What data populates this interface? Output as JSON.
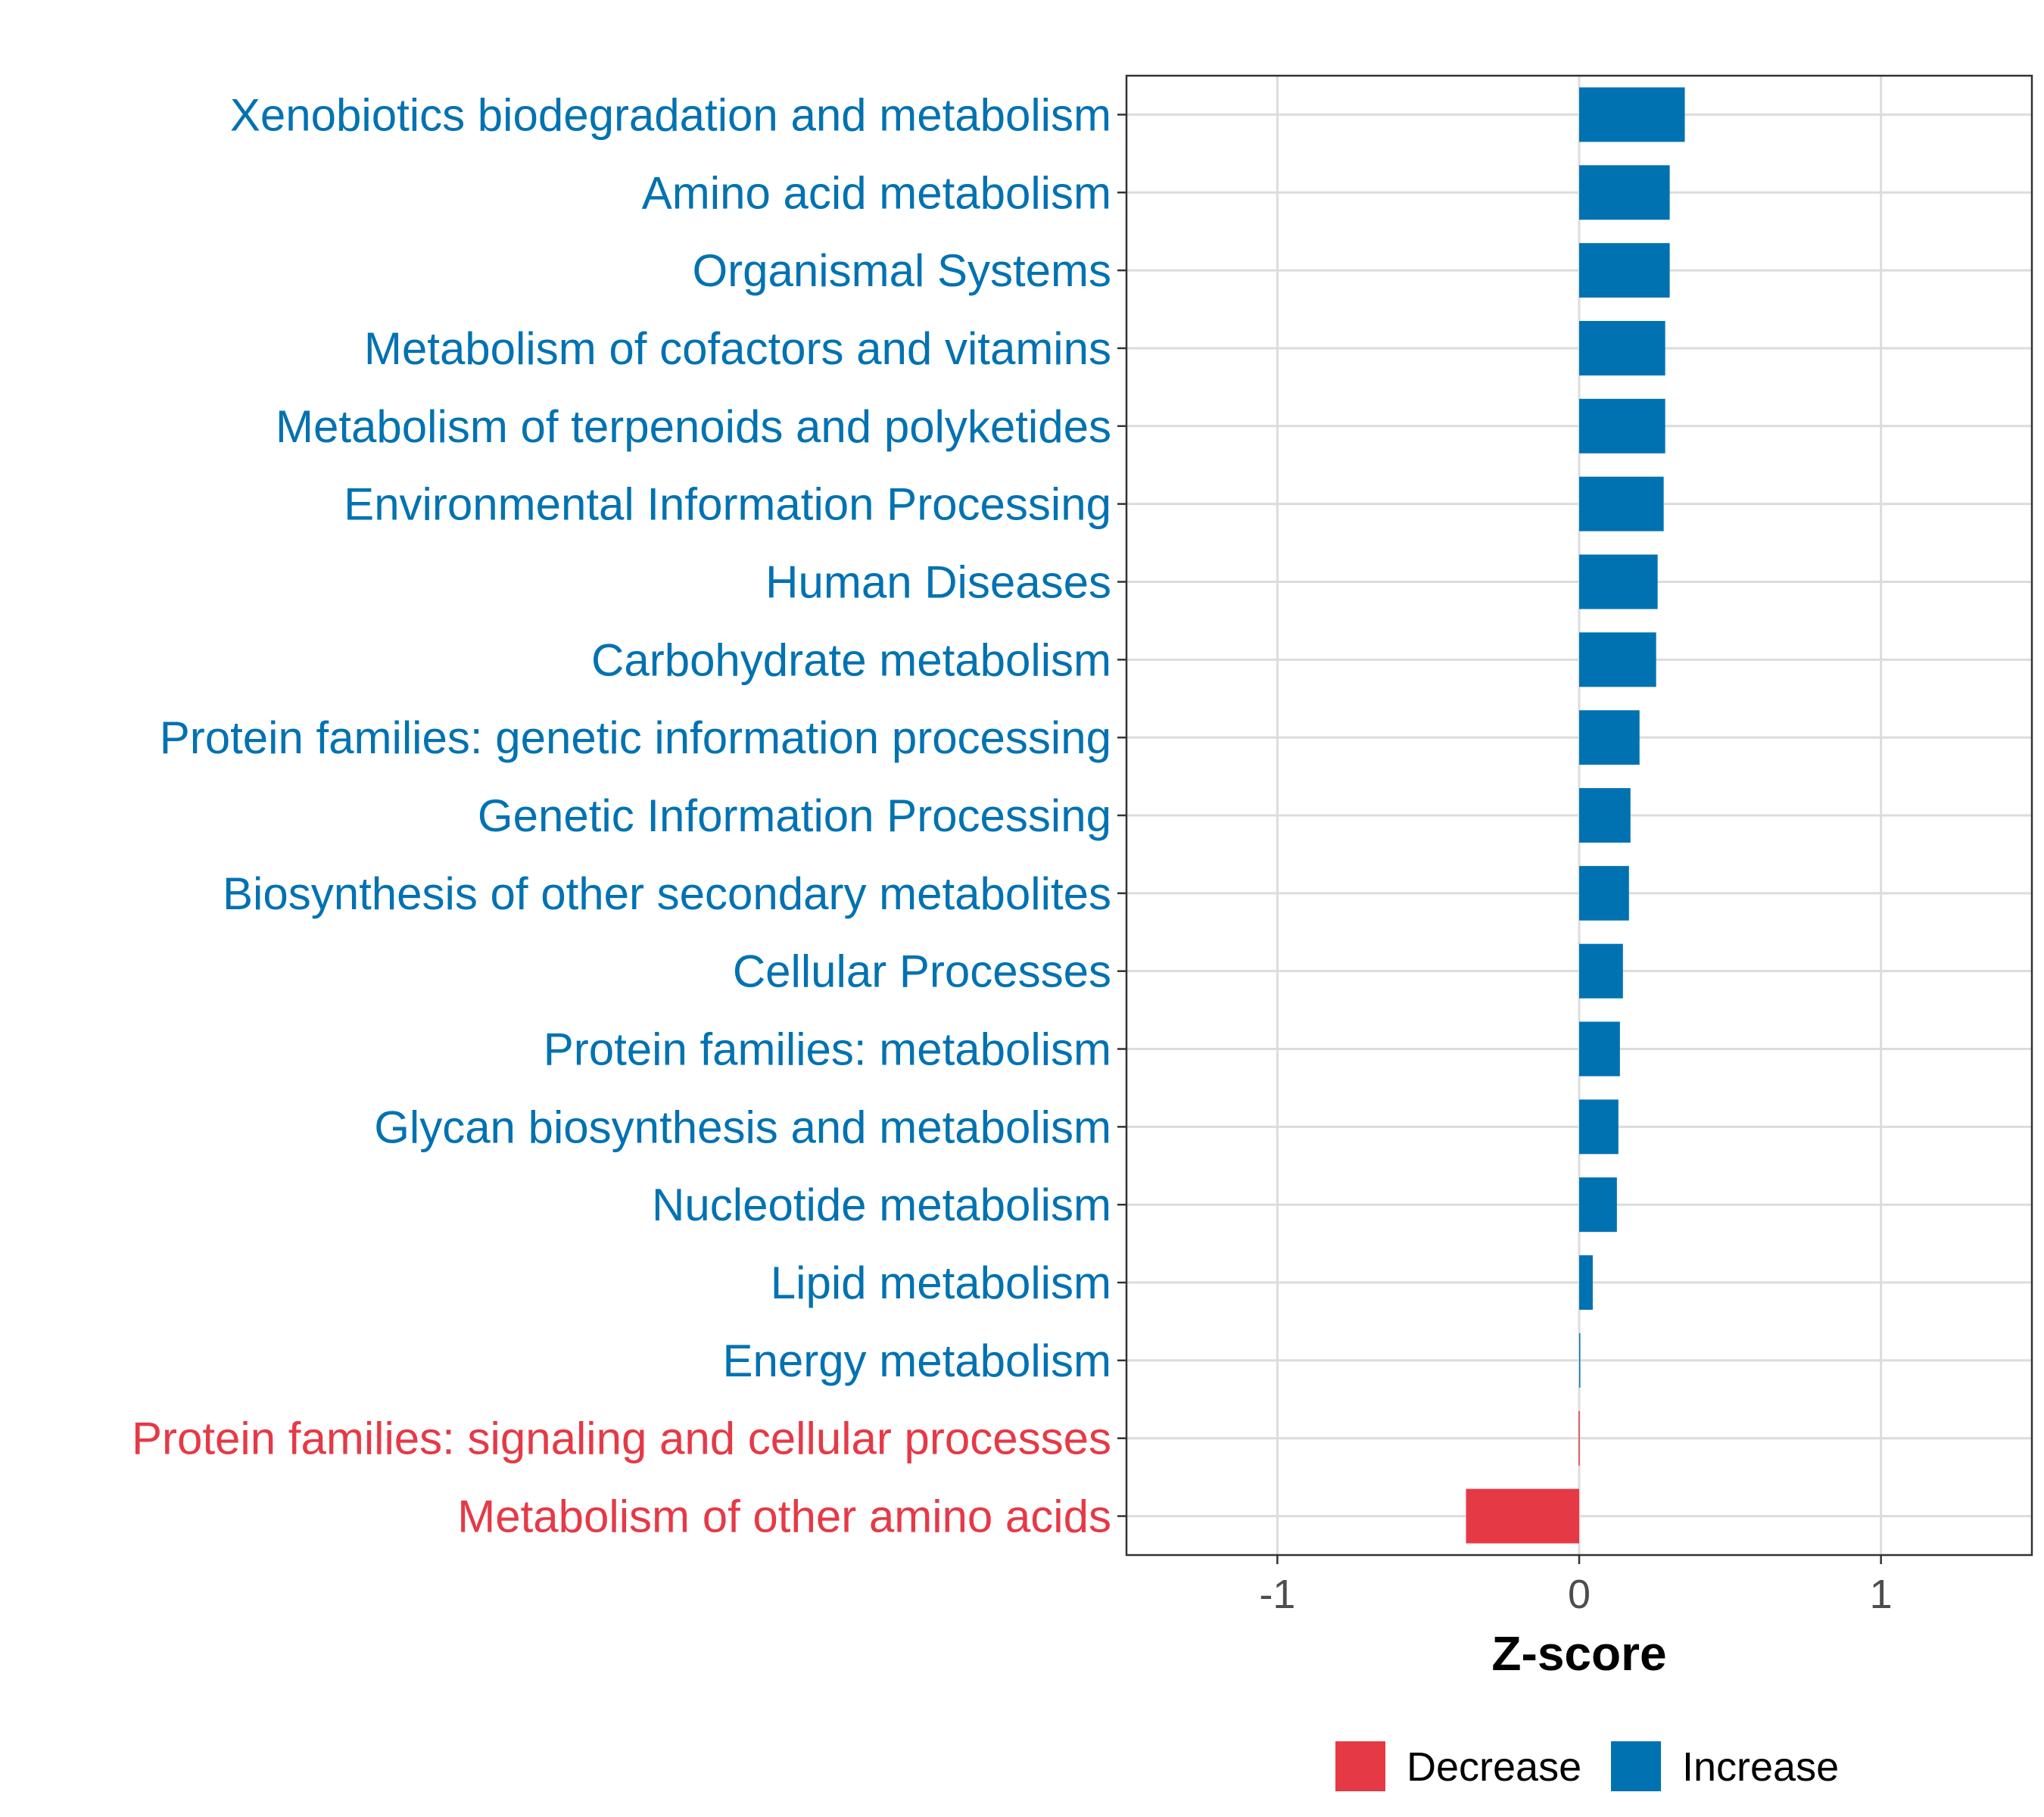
{
  "chart_data": {
    "type": "bar",
    "orientation": "horizontal",
    "title": "",
    "xlabel": "Z-score",
    "ylabel": "",
    "xlim": [
      -1.5,
      1.5
    ],
    "xticks": [
      -1,
      0,
      1
    ],
    "xtick_labels": [
      "-1",
      "0",
      "1"
    ],
    "grid": true,
    "legend_position": "bottom",
    "legend": [
      {
        "name": "Decrease",
        "color": "#E63946"
      },
      {
        "name": "Increase",
        "color": "#0072B2"
      }
    ],
    "categories": [
      "Xenobiotics biodegradation and metabolism",
      "Amino acid metabolism",
      "Organismal Systems",
      "Metabolism of cofactors and vitamins",
      "Metabolism of terpenoids and polyketides",
      "Environmental Information Processing",
      "Human Diseases",
      "Carbohydrate metabolism",
      "Protein families: genetic information processing",
      "Genetic Information Processing",
      "Biosynthesis of other secondary metabolites",
      "Cellular Processes",
      "Protein families: metabolism",
      "Glycan biosynthesis and metabolism",
      "Nucleotide metabolism",
      "Lipid metabolism",
      "Energy metabolism",
      "Protein families: signaling and cellular processes",
      "Metabolism of other amino acids"
    ],
    "values": [
      0.35,
      0.3,
      0.3,
      0.285,
      0.285,
      0.28,
      0.26,
      0.255,
      0.2,
      0.17,
      0.165,
      0.145,
      0.135,
      0.13,
      0.125,
      0.045,
      0.003,
      -0.002,
      -0.375
    ],
    "direction": [
      "Increase",
      "Increase",
      "Increase",
      "Increase",
      "Increase",
      "Increase",
      "Increase",
      "Increase",
      "Increase",
      "Increase",
      "Increase",
      "Increase",
      "Increase",
      "Increase",
      "Increase",
      "Increase",
      "Increase",
      "Decrease",
      "Decrease"
    ]
  }
}
